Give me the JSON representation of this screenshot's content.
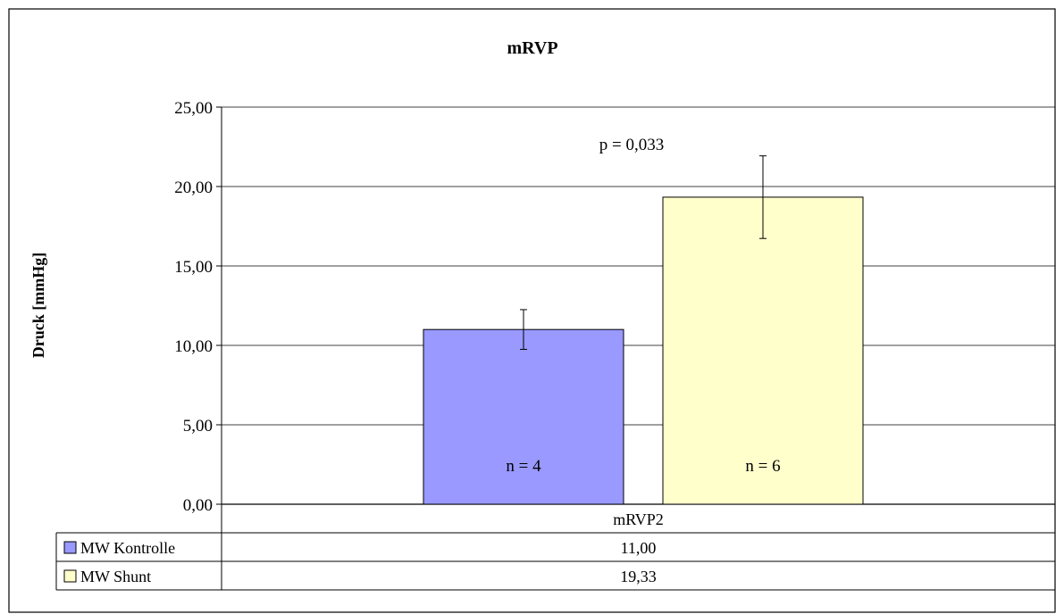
{
  "chart_data": {
    "type": "bar",
    "title": "mRVP",
    "ylabel": "Druck [mmHg]",
    "xlabel": "",
    "categories": [
      "mRVP2"
    ],
    "ylim": [
      0,
      25
    ],
    "yticks": [
      "0,00",
      "5,00",
      "10,00",
      "15,00",
      "20,00",
      "25,00"
    ],
    "ytick_values": [
      0,
      5,
      10,
      15,
      20,
      25
    ],
    "grid": true,
    "series": [
      {
        "name": "MW Kontrolle",
        "values": [
          11.0
        ],
        "error": [
          1.25
        ],
        "color": "#9999ff",
        "annotation": "n = 4",
        "table_value": "11,00"
      },
      {
        "name": "MW Shunt",
        "values": [
          19.33
        ],
        "error": [
          2.6
        ],
        "color": "#ffffcc",
        "annotation": "n = 6",
        "table_value": "19,33"
      }
    ],
    "annotations": [
      "p = 0,033"
    ],
    "data_table": true
  }
}
